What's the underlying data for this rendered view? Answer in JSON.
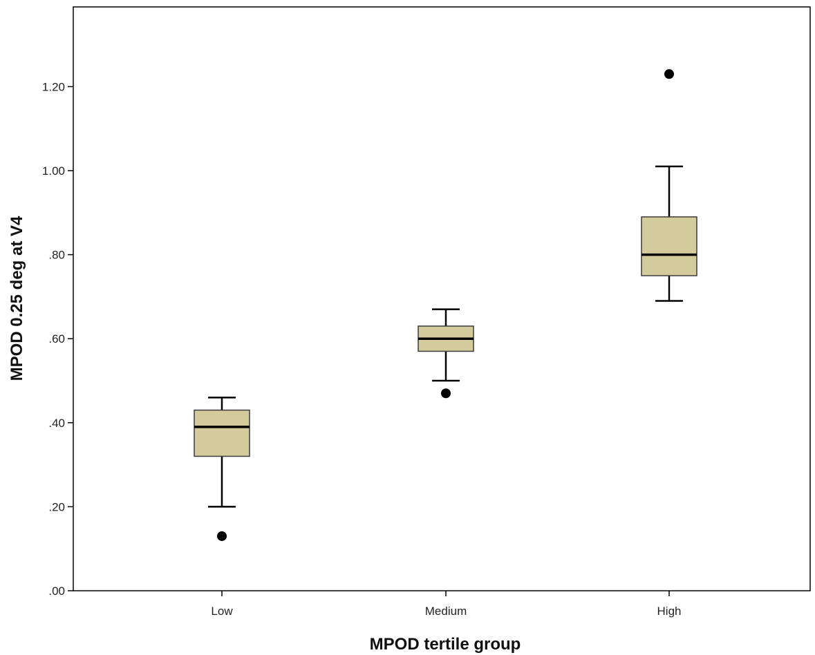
{
  "chart_data": {
    "type": "boxplot",
    "title": "",
    "xlabel": "MPOD tertile group",
    "ylabel": "MPOD 0.25 deg at V4",
    "ylim": [
      0,
      1.38
    ],
    "yticks": [
      ".00",
      ".20",
      ".40",
      ".60",
      ".80",
      "1.00",
      "1.20"
    ],
    "ytick_values": [
      0,
      0.2,
      0.4,
      0.6,
      0.8,
      1.0,
      1.2
    ],
    "categories": [
      "Low",
      "Medium",
      "High"
    ],
    "boxes": [
      {
        "category": "Low",
        "whisker_low": 0.2,
        "q1": 0.32,
        "median": 0.39,
        "q3": 0.43,
        "whisker_high": 0.46,
        "outliers": [
          0.13
        ]
      },
      {
        "category": "Medium",
        "whisker_low": 0.5,
        "q1": 0.57,
        "median": 0.6,
        "q3": 0.63,
        "whisker_high": 0.67,
        "outliers": [
          0.47
        ]
      },
      {
        "category": "High",
        "whisker_low": 0.69,
        "q1": 0.75,
        "median": 0.8,
        "q3": 0.89,
        "whisker_high": 1.01,
        "outliers": [
          1.23
        ]
      }
    ],
    "grid": false,
    "colors": {
      "box_fill": "#d4cb9d",
      "box_stroke": "#3a3a3a",
      "line": "#000000",
      "outlier": "#000000"
    }
  }
}
